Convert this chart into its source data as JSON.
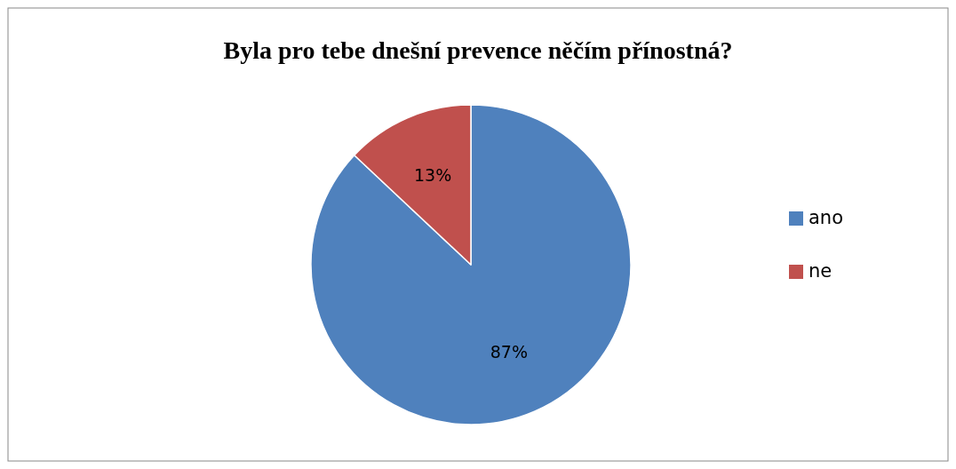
{
  "chart_data": {
    "type": "pie",
    "title": "Byla pro tebe dnešní prevence něčím přínostná?",
    "categories": [
      "ano",
      "ne"
    ],
    "values": [
      87,
      13
    ],
    "colors": [
      "#4f81bd",
      "#c0504d"
    ],
    "value_labels": [
      "87%",
      "13%"
    ],
    "legend": "right"
  }
}
